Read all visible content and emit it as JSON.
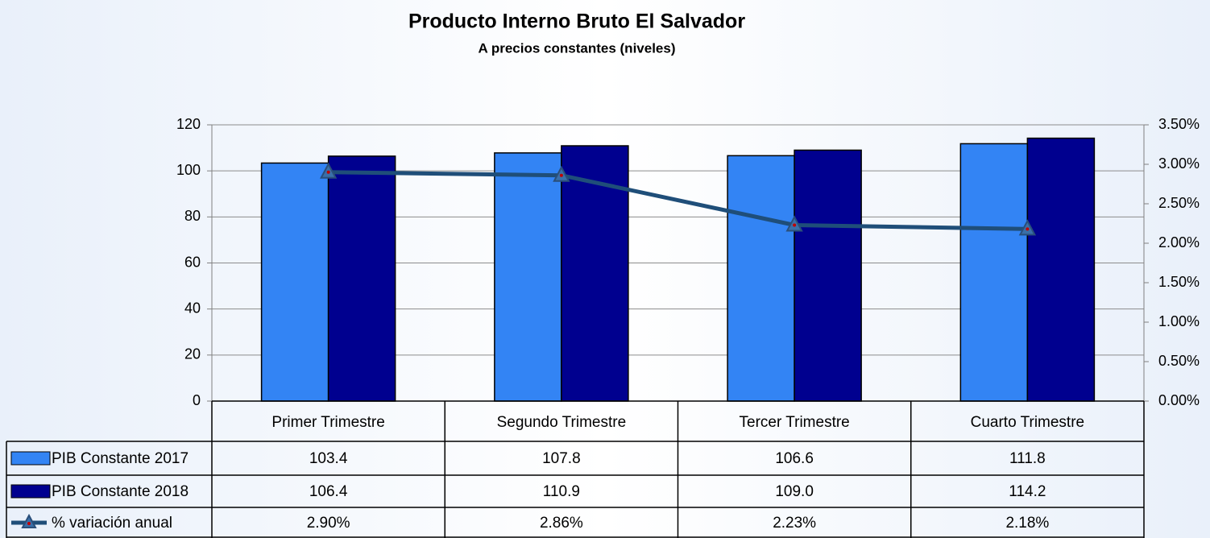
{
  "chart_data": {
    "type": "bar",
    "title": "Producto Interno Bruto El Salvador",
    "subtitle": "A precios constantes (niveles)",
    "categories": [
      "Primer Trimestre",
      "Segundo Trimestre",
      "Tercer Trimestre",
      "Cuarto Trimestre"
    ],
    "series": [
      {
        "name": "PIB Constante 2017",
        "color": "#3384f4",
        "values": [
          103.4,
          107.8,
          106.6,
          111.8
        ]
      },
      {
        "name": "PIB Constante 2018",
        "color": "#00008f",
        "values": [
          106.4,
          110.9,
          109.0,
          114.2
        ],
        "value_labels": [
          "106.4",
          "110.9",
          "109.0",
          "114.2"
        ]
      },
      {
        "name": "% variación anual",
        "color": "#1f4e79",
        "type": "line",
        "axis": "y2",
        "values": [
          2.9,
          2.86,
          2.23,
          2.18
        ],
        "value_labels": [
          "2.90%",
          "2.86%",
          "2.23%",
          "2.18%"
        ]
      }
    ],
    "ylim": [
      0,
      120
    ],
    "yticks": [
      0,
      20,
      40,
      60,
      80,
      100,
      120
    ],
    "y2lim": [
      0,
      3.5
    ],
    "y2ticks": [
      {
        "value": 0,
        "label": "0.00%"
      },
      {
        "value": 0.5,
        "label": "0.50%"
      },
      {
        "value": 1,
        "label": "1.00%"
      },
      {
        "value": 1.5,
        "label": "1.50%"
      },
      {
        "value": 2,
        "label": "2.00%"
      },
      {
        "value": 2.5,
        "label": "2.50%"
      },
      {
        "value": 3,
        "label": "3.00%"
      },
      {
        "value": 3.5,
        "label": "3.50%"
      }
    ],
    "grid": true,
    "data_table": true
  }
}
